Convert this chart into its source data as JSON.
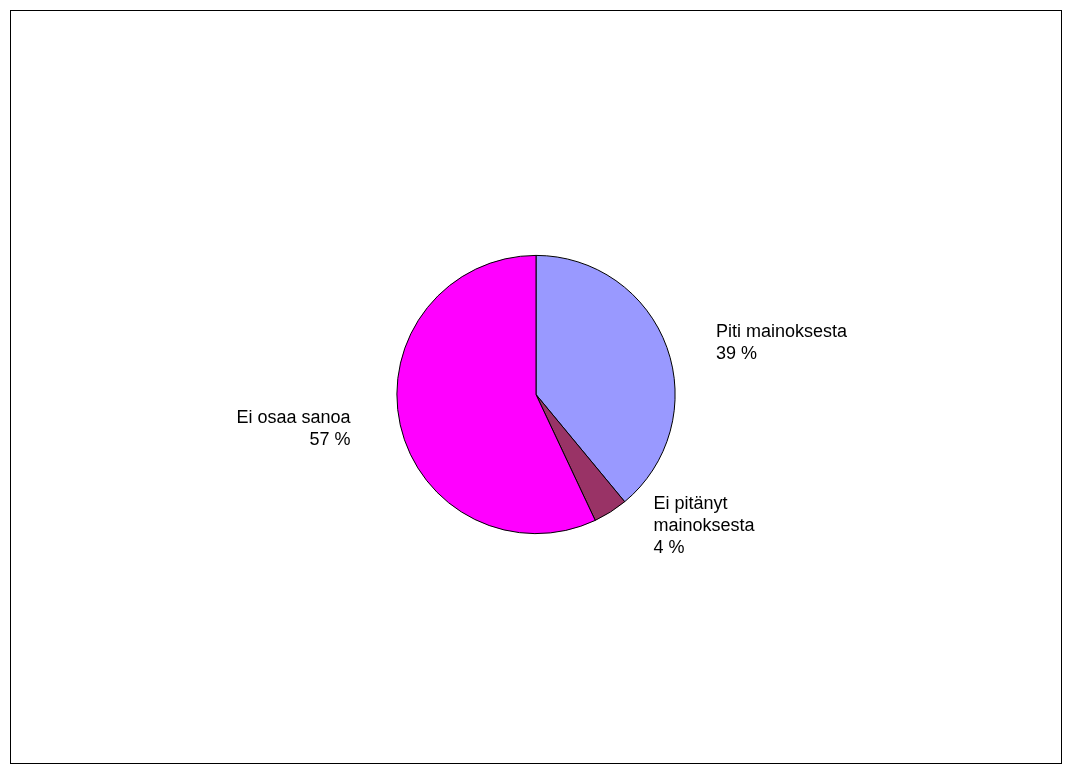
{
  "chart_data": {
    "type": "pie",
    "categories": [
      "Piti mainoksesta",
      "Ei pitänyt mainoksesta",
      "Ei osaa sanoa"
    ],
    "values": [
      39,
      4,
      57
    ],
    "colors": [
      "#9999ff",
      "#993366",
      "#ff00ff"
    ],
    "value_labels": [
      "39 %",
      "4 %",
      "57 %"
    ],
    "legend": false
  }
}
